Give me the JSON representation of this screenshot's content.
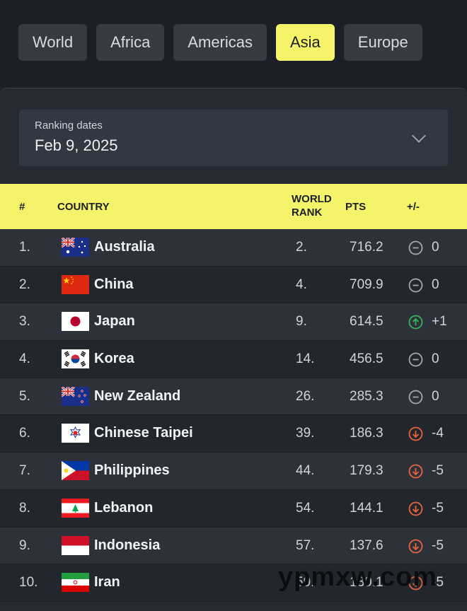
{
  "tabs": [
    {
      "label": "World",
      "active": false
    },
    {
      "label": "Africa",
      "active": false
    },
    {
      "label": "Americas",
      "active": false
    },
    {
      "label": "Asia",
      "active": true
    },
    {
      "label": "Europe",
      "active": false
    }
  ],
  "date_select": {
    "label": "Ranking dates",
    "value": "Feb 9, 2025",
    "icon": "chevron-down-icon"
  },
  "table": {
    "headers": {
      "num": "#",
      "country": "COUNTRY",
      "world_rank_line1": "WORLD",
      "world_rank_line2": "RANK",
      "pts": "PTS",
      "change": "+/-"
    },
    "rows": [
      {
        "num": "1.",
        "flag": "australia-flag",
        "country": "Australia",
        "world_rank": "2.",
        "pts": "716.2",
        "change_icon": "neutral-icon",
        "change": "0"
      },
      {
        "num": "2.",
        "flag": "china-flag",
        "country": "China",
        "world_rank": "4.",
        "pts": "709.9",
        "change_icon": "neutral-icon",
        "change": "0"
      },
      {
        "num": "3.",
        "flag": "japan-flag",
        "country": "Japan",
        "world_rank": "9.",
        "pts": "614.5",
        "change_icon": "up-arrow-icon",
        "change": "+1"
      },
      {
        "num": "4.",
        "flag": "korea-flag",
        "country": "Korea",
        "world_rank": "14.",
        "pts": "456.5",
        "change_icon": "neutral-icon",
        "change": "0"
      },
      {
        "num": "5.",
        "flag": "new-zealand-flag",
        "country": "New Zealand",
        "world_rank": "26.",
        "pts": "285.3",
        "change_icon": "neutral-icon",
        "change": "0"
      },
      {
        "num": "6.",
        "flag": "chinese-taipei-flag",
        "country": "Chinese Taipei",
        "world_rank": "39.",
        "pts": "186.3",
        "change_icon": "down-arrow-icon",
        "change": "-4"
      },
      {
        "num": "7.",
        "flag": "philippines-flag",
        "country": "Philippines",
        "world_rank": "44.",
        "pts": "179.3",
        "change_icon": "down-arrow-icon",
        "change": "-5"
      },
      {
        "num": "8.",
        "flag": "lebanon-flag",
        "country": "Lebanon",
        "world_rank": "54.",
        "pts": "144.1",
        "change_icon": "down-arrow-icon",
        "change": "-5"
      },
      {
        "num": "9.",
        "flag": "indonesia-flag",
        "country": "Indonesia",
        "world_rank": "57.",
        "pts": "137.6",
        "change_icon": "down-arrow-icon",
        "change": "-5"
      },
      {
        "num": "10.",
        "flag": "iran-flag",
        "country": "Iran",
        "world_rank": "59.",
        "pts": "130.1",
        "change_icon": "down-arrow-icon",
        "change": "-5"
      }
    ]
  },
  "watermark": "ypmxw.com",
  "colors": {
    "accent": "#f4f36a",
    "up": "#35b35a",
    "down": "#e8643c",
    "neutral": "#a3a8b0"
  }
}
